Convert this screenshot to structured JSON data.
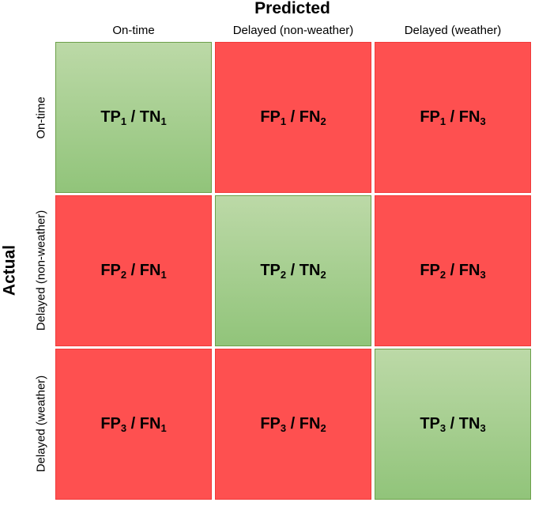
{
  "axes": {
    "predicted_title": "Predicted",
    "actual_title": "Actual"
  },
  "columns": [
    "On-time",
    "Delayed (non-weather)",
    "Delayed (weather)"
  ],
  "rows": [
    "On-time",
    "Delayed (non-weather)",
    "Delayed (weather)"
  ],
  "colors": {
    "correct_gradient_top": "#bcd9a7",
    "correct_gradient_bottom": "#91c47a",
    "incorrect": "#fe5050"
  },
  "cells": [
    [
      {
        "a": "TP",
        "a_sub": "1",
        "b": "TN",
        "b_sub": "1",
        "sep": " / "
      },
      {
        "a": "FP",
        "a_sub": "1",
        "b": "FN",
        "b_sub": "2",
        "sep": " / "
      },
      {
        "a": "FP",
        "a_sub": "1",
        "b": "FN",
        "b_sub": "3",
        "sep": " / "
      }
    ],
    [
      {
        "a": "FP",
        "a_sub": "2",
        "b": "FN",
        "b_sub": "1",
        "sep": " / "
      },
      {
        "a": "TP",
        "a_sub": "2",
        "b": "TN",
        "b_sub": "2",
        "sep": " / "
      },
      {
        "a": "FP",
        "a_sub": "2",
        "b": "FN",
        "b_sub": "3",
        "sep": " / "
      }
    ],
    [
      {
        "a": "FP",
        "a_sub": "3",
        "b": "FN",
        "b_sub": "1",
        "sep": " / "
      },
      {
        "a": "FP",
        "a_sub": "3",
        "b": "FN",
        "b_sub": "2",
        "sep": " / "
      },
      {
        "a": "TP",
        "a_sub": "3",
        "b": "TN",
        "b_sub": "3",
        "sep": " / "
      }
    ]
  ]
}
